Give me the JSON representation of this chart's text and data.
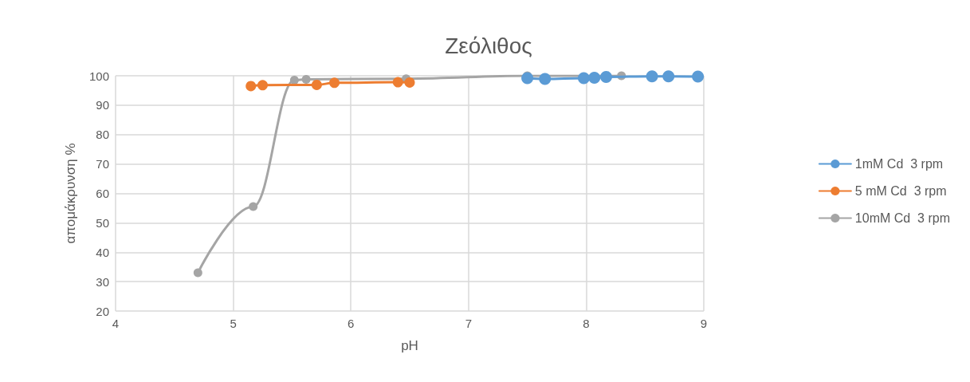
{
  "chart_data": {
    "type": "line",
    "title": "Ζεόλιθος",
    "xlabel": "pH",
    "ylabel": "απομάκρυνση %",
    "xlim": [
      4,
      9
    ],
    "xticks": [
      4,
      5,
      6,
      7,
      8,
      9
    ],
    "ylim": [
      20,
      100
    ],
    "yticks": [
      20,
      30,
      40,
      50,
      60,
      70,
      80,
      90,
      100
    ],
    "grid": true,
    "legend": "right",
    "marker": "circle",
    "line_style": "solid",
    "series": [
      {
        "name": "1mM Cd  3 rpm",
        "color": "#5b9bd5",
        "x": [
          7.5,
          7.65,
          7.98,
          8.07,
          8.17,
          8.56,
          8.7,
          8.95
        ],
        "values": [
          99.2,
          98.9,
          99.2,
          99.3,
          99.6,
          99.8,
          99.8,
          99.7
        ]
      },
      {
        "name": "5 mM Cd  3 rpm",
        "color": "#ed7d31",
        "x": [
          5.15,
          5.25,
          5.71,
          5.86,
          6.4,
          6.5
        ],
        "values": [
          96.5,
          96.8,
          96.9,
          97.6,
          97.8,
          97.7
        ]
      },
      {
        "name": "10mM Cd  3 rpm",
        "color": "#a5a5a5",
        "x": [
          4.7,
          5.17,
          5.52,
          5.62,
          6.47,
          7.5,
          8.3
        ],
        "values": [
          33,
          55.5,
          98.5,
          98.8,
          99,
          100,
          100
        ]
      }
    ]
  }
}
